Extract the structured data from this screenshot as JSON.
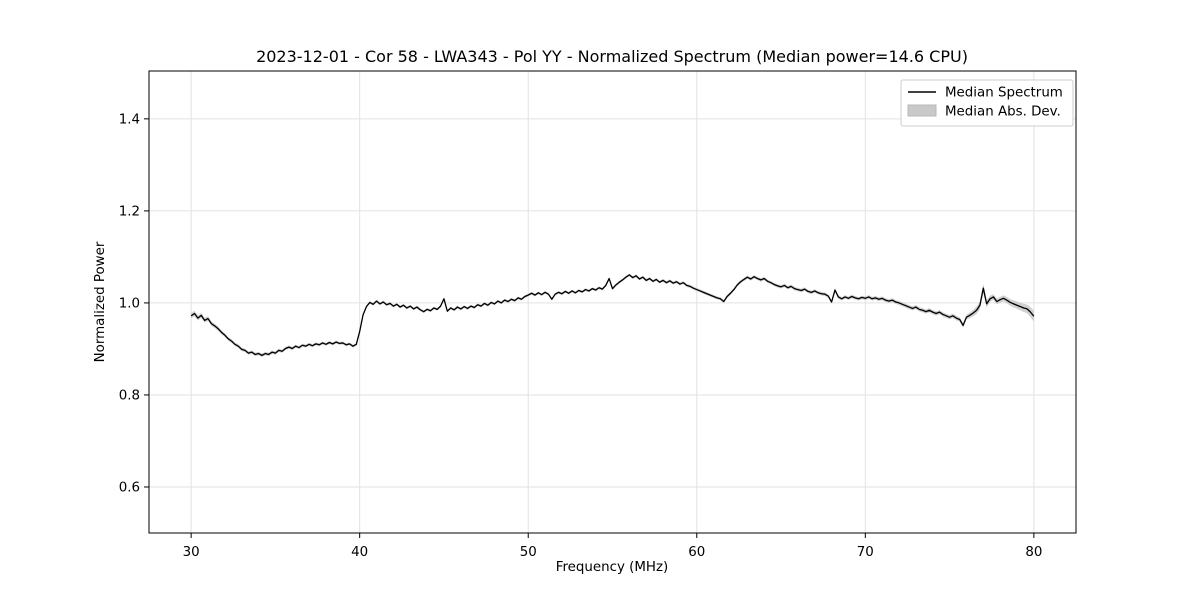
{
  "figure": {
    "title": "2023-12-01 - Cor 58 - LWA343 - Pol YY - Normalized Spectrum (Median power=14.6 CPU)",
    "xlabel": "Frequency (MHz)",
    "ylabel": "Normalized Power"
  },
  "legend": {
    "entries": [
      {
        "label": "Median Spectrum",
        "type": "line"
      },
      {
        "label": "Median Abs. Dev.",
        "type": "patch"
      }
    ]
  },
  "colors": {
    "line": "#000000",
    "band": "#c9c9c9",
    "band_edge": "#b8b8b8",
    "grid": "#e2e2e2",
    "spine": "#000000",
    "legend_border": "#cccccc",
    "background": "#ffffff"
  },
  "chart_data": {
    "type": "line",
    "title": "2023-12-01 - Cor 58 - LWA343 - Pol YY - Normalized Spectrum (Median power=14.6 CPU)",
    "xlabel": "Frequency (MHz)",
    "ylabel": "Normalized Power",
    "xlim": [
      27.5,
      82.5
    ],
    "ylim": [
      0.5,
      1.504
    ],
    "xticks": [
      30,
      40,
      50,
      60,
      70,
      80
    ],
    "xtick_labels": [
      "30",
      "40",
      "50",
      "60",
      "70",
      "80"
    ],
    "yticks": [
      0.6,
      0.8,
      1.0,
      1.2,
      1.4
    ],
    "ytick_labels": [
      "0.6",
      "0.8",
      "1.0",
      "1.2",
      "1.4"
    ],
    "grid": true,
    "legend_position": "upper right",
    "series": [
      {
        "name": "Median Spectrum",
        "points": [
          [
            30.0,
            0.972
          ],
          [
            30.2,
            0.977
          ],
          [
            30.4,
            0.967
          ],
          [
            30.6,
            0.973
          ],
          [
            30.8,
            0.962
          ],
          [
            31.0,
            0.966
          ],
          [
            31.2,
            0.955
          ],
          [
            31.4,
            0.95
          ],
          [
            31.6,
            0.944
          ],
          [
            31.8,
            0.936
          ],
          [
            32.0,
            0.93
          ],
          [
            32.2,
            0.922
          ],
          [
            32.4,
            0.917
          ],
          [
            32.6,
            0.91
          ],
          [
            32.8,
            0.906
          ],
          [
            33.0,
            0.899
          ],
          [
            33.2,
            0.897
          ],
          [
            33.4,
            0.891
          ],
          [
            33.6,
            0.893
          ],
          [
            33.8,
            0.888
          ],
          [
            34.0,
            0.89
          ],
          [
            34.2,
            0.886
          ],
          [
            34.4,
            0.89
          ],
          [
            34.6,
            0.888
          ],
          [
            34.8,
            0.893
          ],
          [
            35.0,
            0.891
          ],
          [
            35.2,
            0.897
          ],
          [
            35.4,
            0.895
          ],
          [
            35.6,
            0.901
          ],
          [
            35.8,
            0.904
          ],
          [
            36.0,
            0.901
          ],
          [
            36.2,
            0.906
          ],
          [
            36.4,
            0.903
          ],
          [
            36.6,
            0.908
          ],
          [
            36.8,
            0.906
          ],
          [
            37.0,
            0.91
          ],
          [
            37.2,
            0.907
          ],
          [
            37.4,
            0.911
          ],
          [
            37.6,
            0.909
          ],
          [
            37.8,
            0.913
          ],
          [
            38.0,
            0.91
          ],
          [
            38.2,
            0.914
          ],
          [
            38.4,
            0.911
          ],
          [
            38.6,
            0.915
          ],
          [
            38.8,
            0.912
          ],
          [
            39.0,
            0.913
          ],
          [
            39.2,
            0.909
          ],
          [
            39.4,
            0.911
          ],
          [
            39.6,
            0.906
          ],
          [
            39.8,
            0.91
          ],
          [
            40.0,
            0.938
          ],
          [
            40.2,
            0.974
          ],
          [
            40.4,
            0.992
          ],
          [
            40.6,
            1.001
          ],
          [
            40.8,
            0.997
          ],
          [
            41.0,
            1.004
          ],
          [
            41.2,
            0.998
          ],
          [
            41.4,
            1.002
          ],
          [
            41.6,
            0.996
          ],
          [
            41.8,
            0.999
          ],
          [
            42.0,
            0.993
          ],
          [
            42.2,
            0.997
          ],
          [
            42.4,
            0.991
          ],
          [
            42.6,
            0.995
          ],
          [
            42.8,
            0.989
          ],
          [
            43.0,
            0.993
          ],
          [
            43.2,
            0.987
          ],
          [
            43.4,
            0.991
          ],
          [
            43.6,
            0.985
          ],
          [
            43.8,
            0.981
          ],
          [
            44.0,
            0.986
          ],
          [
            44.2,
            0.983
          ],
          [
            44.4,
            0.989
          ],
          [
            44.6,
            0.986
          ],
          [
            44.8,
            0.993
          ],
          [
            45.0,
            1.009
          ],
          [
            45.2,
            0.982
          ],
          [
            45.4,
            0.989
          ],
          [
            45.6,
            0.985
          ],
          [
            45.8,
            0.991
          ],
          [
            46.0,
            0.987
          ],
          [
            46.2,
            0.992
          ],
          [
            46.4,
            0.988
          ],
          [
            46.6,
            0.993
          ],
          [
            46.8,
            0.99
          ],
          [
            47.0,
            0.996
          ],
          [
            47.2,
            0.993
          ],
          [
            47.4,
            0.999
          ],
          [
            47.6,
            0.995
          ],
          [
            47.8,
            1.001
          ],
          [
            48.0,
            0.998
          ],
          [
            48.2,
            1.004
          ],
          [
            48.4,
            1.0
          ],
          [
            48.6,
            1.006
          ],
          [
            48.8,
            1.003
          ],
          [
            49.0,
            1.008
          ],
          [
            49.2,
            1.005
          ],
          [
            49.4,
            1.011
          ],
          [
            49.6,
            1.008
          ],
          [
            49.8,
            1.014
          ],
          [
            50.0,
            1.017
          ],
          [
            50.2,
            1.021
          ],
          [
            50.4,
            1.017
          ],
          [
            50.6,
            1.022
          ],
          [
            50.8,
            1.018
          ],
          [
            51.0,
            1.023
          ],
          [
            51.2,
            1.019
          ],
          [
            51.4,
            1.008
          ],
          [
            51.6,
            1.019
          ],
          [
            51.8,
            1.023
          ],
          [
            52.0,
            1.02
          ],
          [
            52.2,
            1.025
          ],
          [
            52.4,
            1.021
          ],
          [
            52.6,
            1.026
          ],
          [
            52.8,
            1.022
          ],
          [
            53.0,
            1.027
          ],
          [
            53.2,
            1.024
          ],
          [
            53.4,
            1.029
          ],
          [
            53.6,
            1.026
          ],
          [
            53.8,
            1.031
          ],
          [
            54.0,
            1.028
          ],
          [
            54.2,
            1.033
          ],
          [
            54.4,
            1.03
          ],
          [
            54.6,
            1.038
          ],
          [
            54.8,
            1.053
          ],
          [
            55.0,
            1.031
          ],
          [
            55.2,
            1.039
          ],
          [
            55.4,
            1.045
          ],
          [
            55.6,
            1.05
          ],
          [
            55.8,
            1.056
          ],
          [
            56.0,
            1.061
          ],
          [
            56.2,
            1.055
          ],
          [
            56.4,
            1.059
          ],
          [
            56.6,
            1.052
          ],
          [
            56.8,
            1.056
          ],
          [
            57.0,
            1.049
          ],
          [
            57.2,
            1.053
          ],
          [
            57.4,
            1.047
          ],
          [
            57.6,
            1.051
          ],
          [
            57.8,
            1.045
          ],
          [
            58.0,
            1.049
          ],
          [
            58.2,
            1.044
          ],
          [
            58.4,
            1.048
          ],
          [
            58.6,
            1.043
          ],
          [
            58.8,
            1.046
          ],
          [
            59.0,
            1.041
          ],
          [
            59.2,
            1.044
          ],
          [
            59.4,
            1.038
          ],
          [
            59.6,
            1.036
          ],
          [
            59.8,
            1.032
          ],
          [
            60.0,
            1.029
          ],
          [
            60.2,
            1.026
          ],
          [
            60.4,
            1.023
          ],
          [
            60.6,
            1.02
          ],
          [
            60.8,
            1.017
          ],
          [
            61.0,
            1.014
          ],
          [
            61.2,
            1.011
          ],
          [
            61.4,
            1.009
          ],
          [
            61.6,
            1.003
          ],
          [
            61.8,
            1.014
          ],
          [
            62.0,
            1.021
          ],
          [
            62.2,
            1.029
          ],
          [
            62.4,
            1.039
          ],
          [
            62.6,
            1.046
          ],
          [
            62.8,
            1.051
          ],
          [
            63.0,
            1.056
          ],
          [
            63.2,
            1.052
          ],
          [
            63.4,
            1.057
          ],
          [
            63.6,
            1.053
          ],
          [
            63.8,
            1.05
          ],
          [
            64.0,
            1.053
          ],
          [
            64.2,
            1.047
          ],
          [
            64.4,
            1.044
          ],
          [
            64.6,
            1.04
          ],
          [
            64.8,
            1.037
          ],
          [
            65.0,
            1.035
          ],
          [
            65.2,
            1.038
          ],
          [
            65.4,
            1.033
          ],
          [
            65.6,
            1.036
          ],
          [
            65.8,
            1.031
          ],
          [
            66.0,
            1.029
          ],
          [
            66.2,
            1.027
          ],
          [
            66.4,
            1.03
          ],
          [
            66.6,
            1.025
          ],
          [
            66.8,
            1.023
          ],
          [
            67.0,
            1.026
          ],
          [
            67.2,
            1.022
          ],
          [
            67.4,
            1.02
          ],
          [
            67.6,
            1.019
          ],
          [
            67.8,
            1.015
          ],
          [
            68.0,
            1.002
          ],
          [
            68.2,
            1.028
          ],
          [
            68.4,
            1.013
          ],
          [
            68.6,
            1.009
          ],
          [
            68.8,
            1.013
          ],
          [
            69.0,
            1.01
          ],
          [
            69.2,
            1.014
          ],
          [
            69.4,
            1.011
          ],
          [
            69.6,
            1.009
          ],
          [
            69.8,
            1.012
          ],
          [
            70.0,
            1.01
          ],
          [
            70.2,
            1.013
          ],
          [
            70.4,
            1.009
          ],
          [
            70.6,
            1.011
          ],
          [
            70.8,
            1.008
          ],
          [
            71.0,
            1.01
          ],
          [
            71.2,
            1.006
          ],
          [
            71.4,
            1.004
          ],
          [
            71.6,
            1.006
          ],
          [
            71.8,
            1.002
          ],
          [
            72.0,
            1.0
          ],
          [
            72.2,
            0.997
          ],
          [
            72.4,
            0.994
          ],
          [
            72.6,
            0.991
          ],
          [
            72.8,
            0.988
          ],
          [
            73.0,
            0.991
          ],
          [
            73.2,
            0.986
          ],
          [
            73.4,
            0.984
          ],
          [
            73.6,
            0.981
          ],
          [
            73.8,
            0.984
          ],
          [
            74.0,
            0.98
          ],
          [
            74.2,
            0.977
          ],
          [
            74.4,
            0.98
          ],
          [
            74.6,
            0.975
          ],
          [
            74.8,
            0.972
          ],
          [
            75.0,
            0.969
          ],
          [
            75.2,
            0.972
          ],
          [
            75.4,
            0.967
          ],
          [
            75.6,
            0.964
          ],
          [
            75.8,
            0.951
          ],
          [
            76.0,
            0.969
          ],
          [
            76.2,
            0.973
          ],
          [
            76.4,
            0.978
          ],
          [
            76.6,
            0.984
          ],
          [
            76.8,
            0.995
          ],
          [
            77.0,
            1.032
          ],
          [
            77.2,
            0.998
          ],
          [
            77.4,
            1.009
          ],
          [
            77.6,
            1.013
          ],
          [
            77.8,
            1.003
          ],
          [
            78.0,
            1.007
          ],
          [
            78.2,
            1.01
          ],
          [
            78.4,
            1.006
          ],
          [
            78.6,
            1.001
          ],
          [
            78.8,
            0.998
          ],
          [
            79.0,
            0.995
          ],
          [
            79.2,
            0.992
          ],
          [
            79.4,
            0.989
          ],
          [
            79.6,
            0.987
          ],
          [
            79.8,
            0.98
          ],
          [
            80.0,
            0.971
          ]
        ]
      },
      {
        "name": "Median Abs. Dev.",
        "band_halfwidth_control_points": [
          [
            30.0,
            0.006
          ],
          [
            32.0,
            0.004
          ],
          [
            40.0,
            0.003
          ],
          [
            55.0,
            0.003
          ],
          [
            70.0,
            0.004
          ],
          [
            76.0,
            0.005
          ],
          [
            77.0,
            0.01
          ],
          [
            77.5,
            0.006
          ],
          [
            78.5,
            0.007
          ],
          [
            79.5,
            0.009
          ],
          [
            80.0,
            0.012
          ]
        ]
      }
    ]
  }
}
